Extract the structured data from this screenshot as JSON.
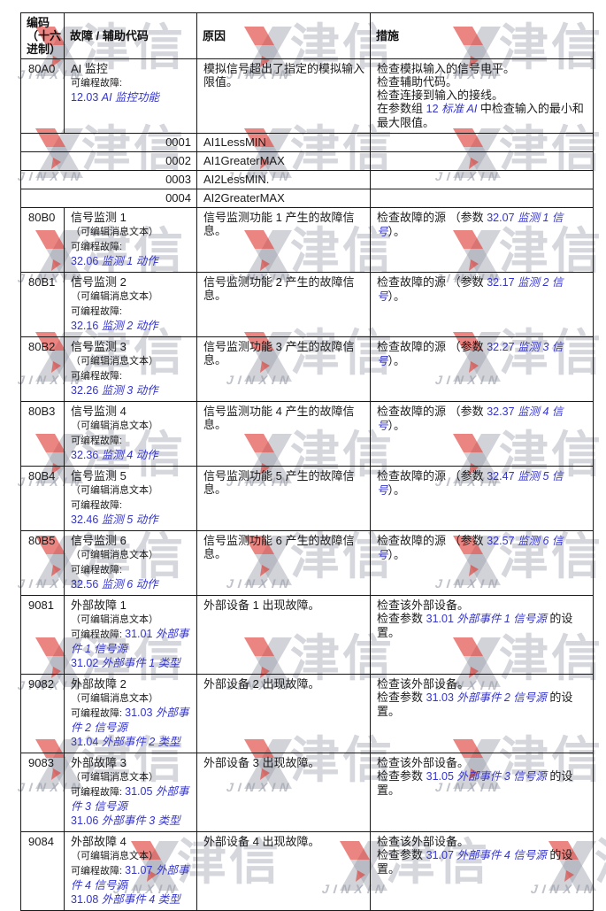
{
  "watermark": {
    "cn": "津信",
    "en": "JINXIN",
    "red": "#de3a34",
    "gray": "#9aa0ab"
  },
  "table": {
    "link_color": "#3434cd",
    "border_color": "#181818",
    "headers": {
      "code": "编码\n（十六\n进制）",
      "fault": "故障 / 辅助代码",
      "cause": "原因",
      "action": "措施"
    },
    "rows": [
      {
        "type": "fault",
        "code": "80A0",
        "fault": [
          [
            [
              "AI 监控",
              "p"
            ]
          ],
          [
            [
              "可编程故障:",
              "s"
            ]
          ],
          [
            [
              "12.03 ",
              "n"
            ],
            [
              "AI 监控功能",
              "b"
            ]
          ]
        ],
        "cause": [
          [
            [
              "模拟信号超出了指定的模拟输入限值。",
              "p"
            ]
          ]
        ],
        "action": [
          [
            [
              "检查模拟输入的信号电平。",
              "p"
            ]
          ],
          [
            [
              "检查辅助代码。",
              "p"
            ]
          ],
          [
            [
              "检查连接到输入的接线。",
              "p"
            ]
          ],
          [
            [
              "在参数组 ",
              "p"
            ],
            [
              "12 ",
              "n"
            ],
            [
              "标准 AI",
              "b"
            ],
            [
              " 中检查输入的最小和最大限值。",
              "p"
            ]
          ]
        ]
      },
      {
        "type": "aux",
        "code": "0001",
        "name": "AI1LessMIN"
      },
      {
        "type": "aux",
        "code": "0002",
        "name": "AI1GreaterMAX"
      },
      {
        "type": "aux",
        "code": "0003",
        "name": "AI2LessMIN."
      },
      {
        "type": "aux",
        "code": "0004",
        "name": "AI2GreaterMAX"
      },
      {
        "type": "fault",
        "code": "80B0",
        "fault": [
          [
            [
              "信号监测 1",
              "p"
            ]
          ],
          [
            [
              "（可编辑消息文本）",
              "s"
            ]
          ],
          [
            [
              "可编程故障:",
              "s"
            ]
          ],
          [
            [
              "32.06 ",
              "n"
            ],
            [
              "监测 1 动作",
              "b"
            ]
          ]
        ],
        "cause": [
          [
            [
              "信号监测功能 1 产生的故障信息。",
              "p"
            ]
          ]
        ],
        "action": [
          [
            [
              "检查故障的源 （参数 ",
              "p"
            ],
            [
              "32.07 ",
              "n"
            ],
            [
              "监测 1 信号",
              "b"
            ],
            [
              "）。",
              "p"
            ]
          ]
        ]
      },
      {
        "type": "fault",
        "code": "80B1",
        "fault": [
          [
            [
              "信号监测 2",
              "p"
            ]
          ],
          [
            [
              "（可编辑消息文本）",
              "s"
            ]
          ],
          [
            [
              "可编程故障:",
              "s"
            ]
          ],
          [
            [
              "32.16 ",
              "n"
            ],
            [
              "监测 2 动作",
              "b"
            ]
          ]
        ],
        "cause": [
          [
            [
              "信号监测功能 2 产生的故障信息。",
              "p"
            ]
          ]
        ],
        "action": [
          [
            [
              "检查故障的源 （参数 ",
              "p"
            ],
            [
              "32.17 ",
              "n"
            ],
            [
              "监测 2 信号",
              "b"
            ],
            [
              "）。",
              "p"
            ]
          ]
        ]
      },
      {
        "type": "fault",
        "code": "80B2",
        "fault": [
          [
            [
              "信号监测 3",
              "p"
            ]
          ],
          [
            [
              "（可编辑消息文本）",
              "s"
            ]
          ],
          [
            [
              "可编程故障:",
              "s"
            ]
          ],
          [
            [
              "32.26 ",
              "n"
            ],
            [
              "监测 3 动作",
              "b"
            ]
          ]
        ],
        "cause": [
          [
            [
              "信号监测功能 3 产生的故障信息。",
              "p"
            ]
          ]
        ],
        "action": [
          [
            [
              "检查故障的源 （参数 ",
              "p"
            ],
            [
              "32.27 ",
              "n"
            ],
            [
              "监测 3 信号",
              "b"
            ],
            [
              "）。",
              "p"
            ]
          ]
        ]
      },
      {
        "type": "fault",
        "code": "80B3",
        "fault": [
          [
            [
              "信号监测 4",
              "p"
            ]
          ],
          [
            [
              "（可编辑消息文本）",
              "s"
            ]
          ],
          [
            [
              "可编程故障:",
              "s"
            ]
          ],
          [
            [
              "32.36 ",
              "n"
            ],
            [
              "监测 4 动作",
              "b"
            ]
          ]
        ],
        "cause": [
          [
            [
              "信号监测功能 4 产生的故障信息。",
              "p"
            ]
          ]
        ],
        "action": [
          [
            [
              "检查故障的源 （参数 ",
              "p"
            ],
            [
              "32.37 ",
              "n"
            ],
            [
              "监测 4 信号",
              "b"
            ],
            [
              "）。",
              "p"
            ]
          ]
        ]
      },
      {
        "type": "fault",
        "code": "80B4",
        "fault": [
          [
            [
              "信号监测 5",
              "p"
            ]
          ],
          [
            [
              "（可编辑消息文本）",
              "s"
            ]
          ],
          [
            [
              "可编程故障:",
              "s"
            ]
          ],
          [
            [
              "32.46 ",
              "n"
            ],
            [
              "监测 5 动作",
              "b"
            ]
          ]
        ],
        "cause": [
          [
            [
              "信号监测功能 5 产生的故障信息。",
              "p"
            ]
          ]
        ],
        "action": [
          [
            [
              "检查故障的源 （参数 ",
              "p"
            ],
            [
              "32.47 ",
              "n"
            ],
            [
              "监测 5 信号",
              "b"
            ],
            [
              "）。",
              "p"
            ]
          ]
        ]
      },
      {
        "type": "fault",
        "code": "80B5",
        "fault": [
          [
            [
              "信号监测 6",
              "p"
            ]
          ],
          [
            [
              "（可编辑消息文本）",
              "s"
            ]
          ],
          [
            [
              "可编程故障:",
              "s"
            ]
          ],
          [
            [
              "32.56 ",
              "n"
            ],
            [
              "监测 6 动作",
              "b"
            ]
          ]
        ],
        "cause": [
          [
            [
              "信号监测功能 6 产生的故障信息。",
              "p"
            ]
          ]
        ],
        "action": [
          [
            [
              "检查故障的源 （参数 ",
              "p"
            ],
            [
              "32.57 ",
              "n"
            ],
            [
              "监测 6 信号",
              "b"
            ],
            [
              "）。",
              "p"
            ]
          ]
        ]
      },
      {
        "type": "fault",
        "code": "9081",
        "fault": [
          [
            [
              "外部故障 1",
              "p"
            ]
          ],
          [
            [
              "（可编辑消息文本）",
              "s"
            ]
          ],
          [
            [
              "可编程故障: ",
              "s"
            ],
            [
              "31.01 ",
              "n"
            ],
            [
              "外部事件 1 信号源",
              "b"
            ]
          ],
          [
            [
              "31.02 ",
              "n"
            ],
            [
              "外部事件 1 类型",
              "b"
            ]
          ]
        ],
        "cause": [
          [
            [
              "外部设备 1 出现故障。",
              "p"
            ]
          ]
        ],
        "action": [
          [
            [
              "检查该外部设备。",
              "p"
            ]
          ],
          [
            [
              "检查参数 ",
              "p"
            ],
            [
              "31.01 ",
              "n"
            ],
            [
              "外部事件 1 信号源",
              "b"
            ],
            [
              " 的设置。",
              "p"
            ]
          ]
        ]
      },
      {
        "type": "fault",
        "code": "9082",
        "fault": [
          [
            [
              "外部故障 2",
              "p"
            ]
          ],
          [
            [
              "（可编辑消息文本）",
              "s"
            ]
          ],
          [
            [
              "可编程故障: ",
              "s"
            ],
            [
              "31.03 ",
              "n"
            ],
            [
              "外部事件 2 信号源",
              "b"
            ]
          ],
          [
            [
              "31.04 ",
              "n"
            ],
            [
              "外部事件 2 类型",
              "b"
            ]
          ]
        ],
        "cause": [
          [
            [
              "外部设备 2 出现故障。",
              "p"
            ]
          ]
        ],
        "action": [
          [
            [
              "检查该外部设备。",
              "p"
            ]
          ],
          [
            [
              "检查参数 ",
              "p"
            ],
            [
              "31.03 ",
              "n"
            ],
            [
              "外部事件 2 信号源",
              "b"
            ],
            [
              " 的设置。",
              "p"
            ]
          ]
        ]
      },
      {
        "type": "fault",
        "code": "9083",
        "fault": [
          [
            [
              "外部故障 3",
              "p"
            ]
          ],
          [
            [
              "（可编辑消息文本）",
              "s"
            ]
          ],
          [
            [
              "可编程故障: ",
              "s"
            ],
            [
              "31.05 ",
              "n"
            ],
            [
              "外部事件 3 信号源",
              "b"
            ]
          ],
          [
            [
              "31.06 ",
              "n"
            ],
            [
              "外部事件 3 类型",
              "b"
            ]
          ]
        ],
        "cause": [
          [
            [
              "外部设备 3 出现故障。",
              "p"
            ]
          ]
        ],
        "action": [
          [
            [
              "检查该外部设备。",
              "p"
            ]
          ],
          [
            [
              "检查参数 ",
              "p"
            ],
            [
              "31.05 ",
              "n"
            ],
            [
              "外部事件 3 信号源",
              "b"
            ],
            [
              " 的设置。",
              "p"
            ]
          ]
        ]
      },
      {
        "type": "fault",
        "code": "9084",
        "fault": [
          [
            [
              "外部故障 4",
              "p"
            ]
          ],
          [
            [
              "（可编辑消息文本）",
              "s"
            ]
          ],
          [
            [
              "可编程故障: ",
              "s"
            ],
            [
              "31.07 ",
              "n"
            ],
            [
              "外部事件 4 信号源",
              "b"
            ]
          ],
          [
            [
              "31.08 ",
              "n"
            ],
            [
              "外部事件 4 类型",
              "b"
            ]
          ]
        ],
        "cause": [
          [
            [
              "外部设备 4 出现故障。",
              "p"
            ]
          ]
        ],
        "action": [
          [
            [
              "检查该外部设备。",
              "p"
            ]
          ],
          [
            [
              "检查参数 ",
              "p"
            ],
            [
              "31.07 ",
              "n"
            ],
            [
              "外部事件 4 信号源",
              "b"
            ],
            [
              " 的设置。",
              "p"
            ]
          ]
        ]
      }
    ]
  }
}
